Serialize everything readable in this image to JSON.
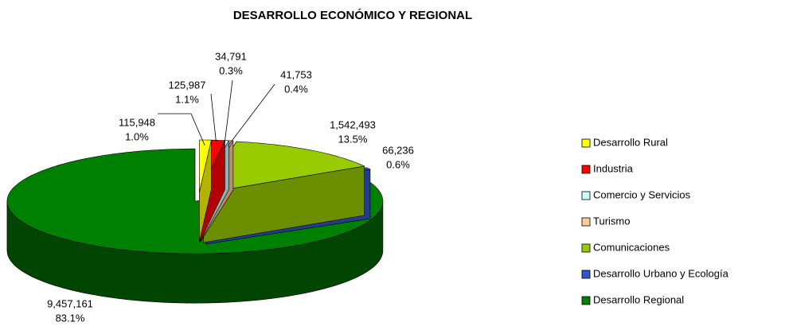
{
  "chart_data": {
    "type": "pie3d",
    "title": "DESARROLLO ECONÓMICO Y REGIONAL",
    "categories": [
      "Desarrollo Rural",
      "Industria",
      "Comercio y Servicios",
      "Turismo",
      "Comunicaciones",
      "Desarrollo Urbano y Ecología",
      "Desarrollo Regional"
    ],
    "values": [
      115948,
      125987,
      34791,
      41753,
      1542493,
      66236,
      9457161
    ],
    "value_labels": [
      "115,948",
      "125,987",
      "34,791",
      "41,753",
      "1,542,493",
      "66,236",
      "9,457,161"
    ],
    "percent_labels": [
      "1.0%",
      "1.1%",
      "0.3%",
      "0.4%",
      "13.5%",
      "0.6%",
      "83.1%"
    ],
    "colors": [
      "#ffff00",
      "#ff0000",
      "#ccffff",
      "#ffcc99",
      "#99cc00",
      "#3355cc",
      "#008000"
    ],
    "legend": "right"
  }
}
